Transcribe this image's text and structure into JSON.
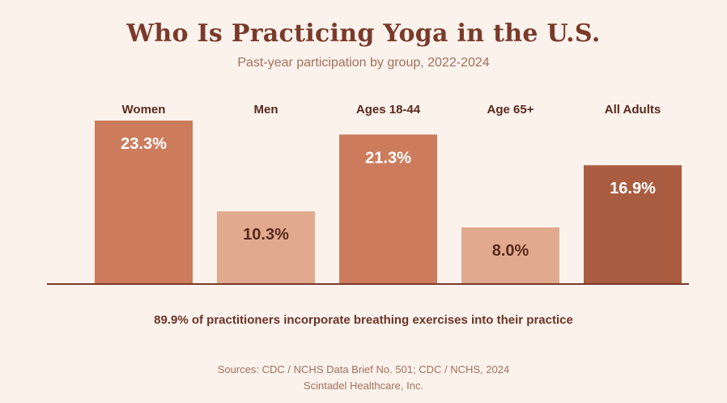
{
  "title": "Who Is Practicing Yoga in the U.S.",
  "subtitle": "Past-year participation by group, 2022-2024",
  "colors": {
    "bar_high": "#cc7c5c",
    "bar_low": "#e1aa8e",
    "bar_total": "#a95c40",
    "axis": "#7a3a2a",
    "category_label": "#5a2a1e",
    "value_label_light": "#ffffff",
    "value_label_dark": "#5a2a1e"
  },
  "chart_data": {
    "type": "bar",
    "categories": [
      "Women",
      "Men",
      "Ages 18-44",
      "Age 65+",
      "All Adults"
    ],
    "values": [
      23.3,
      10.3,
      21.3,
      8.0,
      16.9
    ],
    "value_labels": [
      "23.3%",
      "10.3%",
      "21.3%",
      "8.0%",
      "16.9%"
    ],
    "title": "Who Is Practicing Yoga in the U.S.",
    "subtitle": "Past-year participation by group, 2022-2024",
    "xlabel": "",
    "ylabel": "",
    "ylim": [
      0,
      23.3
    ],
    "grid": false,
    "legend": "none"
  },
  "note": "89.9% of practitioners incorporate breathing exercises into their practice",
  "sources": "Sources: CDC / NCHS Data Brief No. 501; CDC / NCHS, 2024",
  "company": "Scintadel Healthcare, Inc."
}
